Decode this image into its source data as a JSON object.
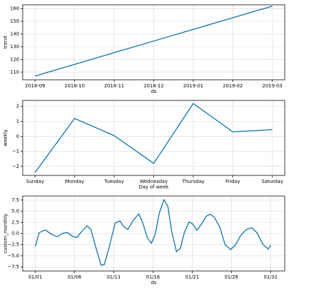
{
  "chart_data": [
    {
      "type": "line",
      "xlabel": "ds",
      "ylabel": "trend",
      "color": "#0072b2",
      "grid": true,
      "x": [
        "2018-09",
        "2019-03"
      ],
      "values": [
        107,
        162
      ],
      "xticks": [
        "2018-09",
        "2018-10",
        "2018-11",
        "2018-12",
        "2019-01",
        "2019-02",
        "2019-03"
      ],
      "ylim": [
        104,
        163
      ],
      "yticks": [
        110,
        120,
        130,
        140,
        150,
        160
      ]
    },
    {
      "type": "line",
      "xlabel": "Day of week",
      "ylabel": "weekly",
      "color": "#0072b2",
      "grid": true,
      "categories": [
        "Sunday",
        "Monday",
        "Tuesday",
        "Wednesday",
        "Thursday",
        "Friday",
        "Saturday"
      ],
      "values": [
        -2.4,
        1.2,
        0.05,
        -1.8,
        2.2,
        0.3,
        0.45
      ],
      "ylim": [
        -2.6,
        2.4
      ],
      "yticks": [
        {
          "value": -2,
          "label": "−2"
        },
        {
          "value": -1,
          "label": "−1"
        },
        0,
        1,
        2
      ]
    },
    {
      "type": "line",
      "xlabel": "ds",
      "ylabel": "custom_monthly",
      "color": "#0072b2",
      "grid": true,
      "x": [
        0,
        0.5,
        1.3,
        2.1,
        2.8,
        3.6,
        4.1,
        4.8,
        5.3,
        5.8,
        6.6,
        7.1,
        7.8,
        8.4,
        8.8,
        9.4,
        10.2,
        10.8,
        11.3,
        11.8,
        12.5,
        13.2,
        13.7,
        14.3,
        14.8,
        15.3,
        15.8,
        16.4,
        16.9,
        17.4,
        18.0,
        18.5,
        19.0,
        19.6,
        20.1,
        20.6,
        21.2,
        21.8,
        22.3,
        22.8,
        23.5,
        24.2,
        24.9,
        25.5,
        26.2,
        26.9,
        27.6,
        28.3,
        29.0,
        29.7,
        30.0
      ],
      "values": [
        -2.9,
        0.2,
        0.8,
        -0.2,
        -0.7,
        0.1,
        0.2,
        -0.7,
        -0.9,
        0.2,
        1.7,
        0.9,
        -3.6,
        -7.1,
        -7.0,
        -3.2,
        2.4,
        2.8,
        1.5,
        0.9,
        3.0,
        4.4,
        2.4,
        -1.0,
        -2.2,
        -0.1,
        4.5,
        7.6,
        6.1,
        0.4,
        -4.1,
        -3.3,
        0.2,
        2.6,
        2.1,
        0.7,
        2.1,
        3.9,
        4.3,
        3.7,
        1.5,
        -2.5,
        -3.6,
        -2.6,
        -0.4,
        0.9,
        1.3,
        0.1,
        -2.4,
        -3.5,
        -2.6
      ],
      "xlim": [
        -1.6,
        31.8
      ],
      "xticks": [
        {
          "value": 0,
          "label": "01/01"
        },
        {
          "value": 5,
          "label": "01/06"
        },
        {
          "value": 10,
          "label": "01/11"
        },
        {
          "value": 15,
          "label": "01/16"
        },
        {
          "value": 20,
          "label": "01/21"
        },
        {
          "value": 25,
          "label": "01/26"
        },
        {
          "value": 30,
          "label": "01/31"
        }
      ],
      "ylim": [
        -8.4,
        8.4
      ],
      "yticks": [
        {
          "value": -7.5,
          "label": "−7.5"
        },
        {
          "value": -5,
          "label": "−5.0"
        },
        {
          "value": -2.5,
          "label": "−2.5"
        },
        {
          "value": 0,
          "label": "0.0"
        },
        {
          "value": 2.5,
          "label": "2.5"
        },
        {
          "value": 5,
          "label": "5.0"
        },
        {
          "value": 7.5,
          "label": "7.5"
        }
      ]
    }
  ]
}
